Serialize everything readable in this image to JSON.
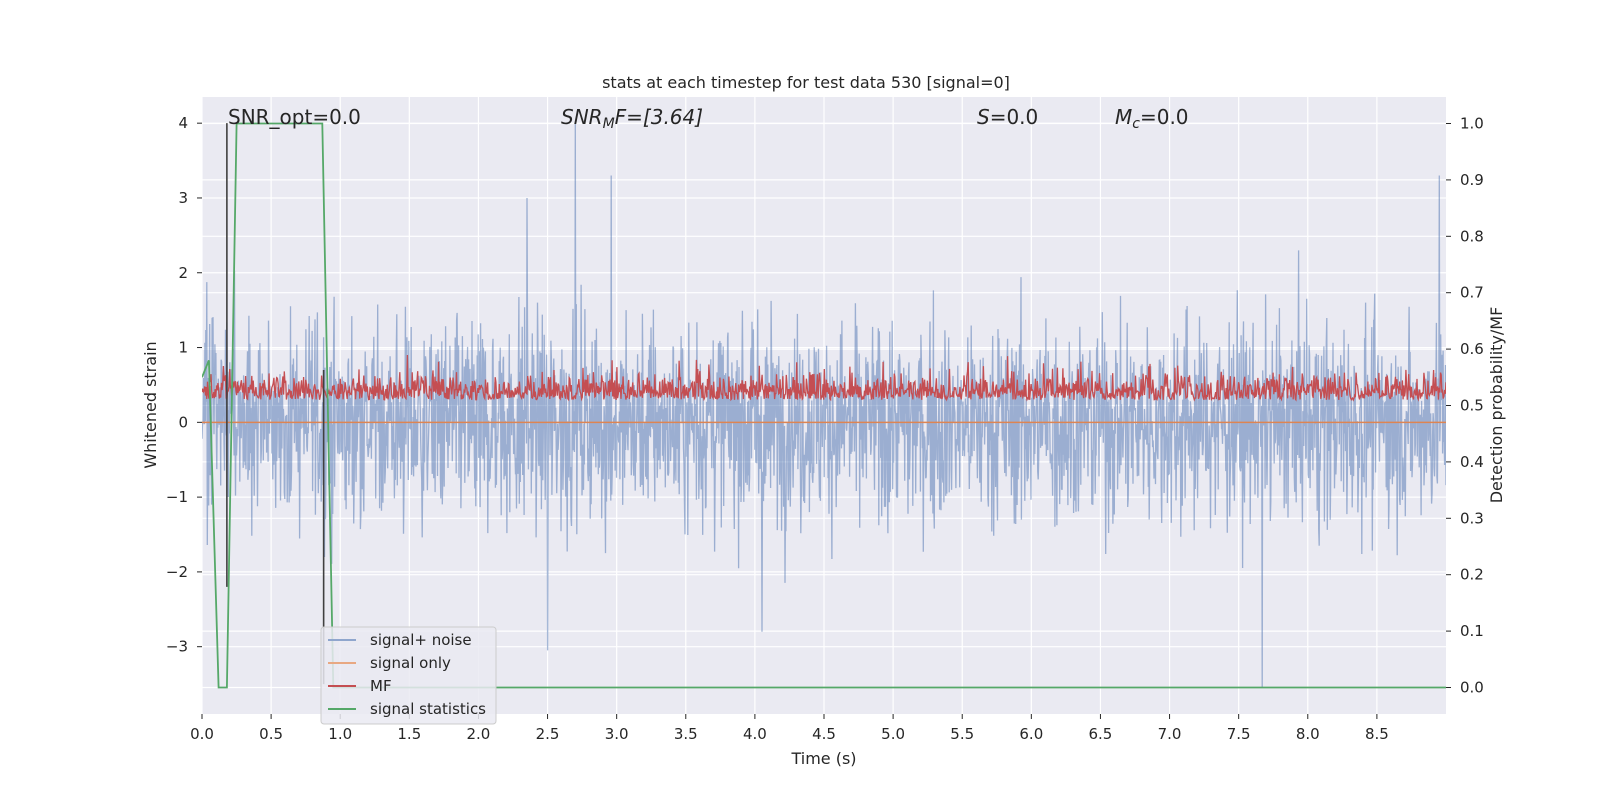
{
  "chart_data": {
    "type": "line",
    "title": "stats at each timestep for test data 530 [signal=0]",
    "xlabel": "Time (s)",
    "ylabel": "Whitened strain",
    "ylabel_right": "Detection probability/MF",
    "xlim": [
      0.0,
      9.0
    ],
    "ylim": [
      -3.9,
      4.35
    ],
    "ylim_right": [
      -0.047,
      1.047
    ],
    "xticks": [
      "0.0",
      "0.5",
      "1.0",
      "1.5",
      "2.0",
      "2.5",
      "3.0",
      "3.5",
      "4.0",
      "4.5",
      "5.0",
      "5.5",
      "6.0",
      "6.5",
      "7.0",
      "7.5",
      "8.0",
      "8.5"
    ],
    "yticks": [
      "−3",
      "−2",
      "−1",
      "0",
      "1",
      "2",
      "3",
      "4"
    ],
    "yticks_right": [
      "0.0",
      "0.1",
      "0.2",
      "0.3",
      "0.4",
      "0.5",
      "0.6",
      "0.7",
      "0.8",
      "0.9",
      "1.0"
    ],
    "grid": true,
    "legend_position": "lower-left",
    "annotations": {
      "snr_opt": "SNR_opt=0.0",
      "snr_mf_symbol": "SNR",
      "snr_mf_sub": "M",
      "snr_mf_rest": "F=[3.64]",
      "s_symbol": "S",
      "s_rest": "=0.0",
      "mc_symbol": "M",
      "mc_sub": "c",
      "mc_rest": "=0.0"
    },
    "series": [
      {
        "name": "signal+ noise",
        "axis": "left",
        "color": "#4c72b0",
        "sampling": "noise between about -2.5 and 2.5 whitened strain with spikes up to 4.0 near t=2.7 and down to -3.6 near t=7.67",
        "envelope_min": -2.5,
        "envelope_max": 2.5,
        "peaks": [
          [
            2.7,
            4.0
          ],
          [
            2.96,
            3.3
          ],
          [
            2.35,
            3.0
          ],
          [
            8.95,
            3.3
          ],
          [
            7.67,
            -3.55
          ],
          [
            2.5,
            -3.05
          ],
          [
            4.05,
            -2.8
          ]
        ]
      },
      {
        "name": "signal only",
        "axis": "left",
        "color": "#dd8452",
        "x": [
          0.0,
          9.0
        ],
        "y": [
          0.0,
          0.0
        ]
      },
      {
        "name": "MF",
        "axis": "left",
        "color": "#c44e52",
        "sampling": "matched filter output between about 0.0 and 0.9 whitened strain",
        "envelope_min": 0.0,
        "envelope_max": 0.9
      },
      {
        "name": "signal statistics",
        "axis": "right",
        "color": "#55a868",
        "x": [
          0.0,
          0.05,
          0.12,
          0.18,
          0.25,
          0.87,
          0.95,
          9.0
        ],
        "y": [
          0.55,
          0.58,
          0.0,
          0.0,
          1.0,
          1.0,
          0.0,
          0.0
        ]
      }
    ],
    "markers": [
      {
        "x": 0.18,
        "y_range": [
          -2.2,
          4.0
        ],
        "color": "#404040"
      },
      {
        "x": 0.88,
        "y_range": [
          -3.5,
          0.7
        ],
        "color": "#404040"
      }
    ]
  }
}
